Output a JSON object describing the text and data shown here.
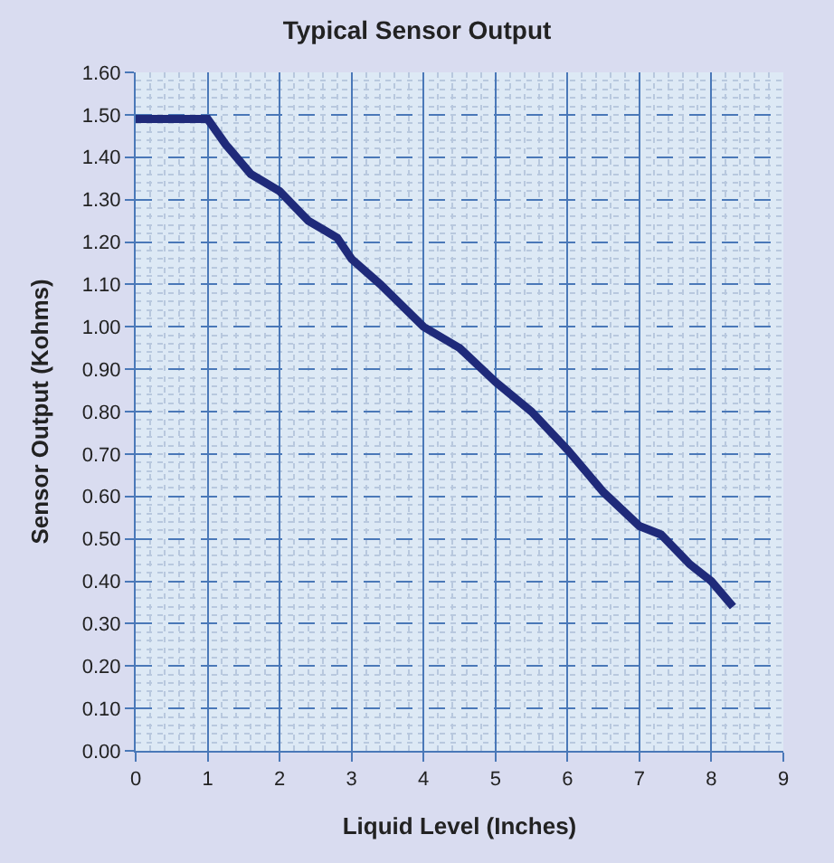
{
  "chart_data": {
    "type": "line",
    "title": "Typical Sensor Output",
    "xlabel": "Liquid Level (Inches)",
    "ylabel": "Sensor Output (Kohms)",
    "x": [
      0,
      1,
      1.25,
      1.6,
      2,
      2.4,
      2.8,
      3,
      3.4,
      4,
      4.5,
      5,
      5.5,
      6,
      6.5,
      7,
      7.3,
      7.7,
      8,
      8.3
    ],
    "series": [
      {
        "color": "#1f2a7a",
        "values": [
          1.49,
          1.49,
          1.43,
          1.36,
          1.32,
          1.25,
          1.21,
          1.16,
          1.1,
          1.0,
          0.95,
          0.87,
          0.8,
          0.71,
          0.61,
          0.53,
          0.51,
          0.44,
          0.4,
          0.34
        ]
      }
    ],
    "xlim": [
      0,
      9
    ],
    "xticks": [
      0,
      1,
      2,
      3,
      4,
      5,
      6,
      7,
      8,
      9
    ],
    "ylim": [
      0,
      1.6
    ],
    "yticks": [
      {
        "value": 0,
        "label": "0.00"
      },
      {
        "value": 0.1,
        "label": "0.10"
      },
      {
        "value": 0.2,
        "label": "0.20"
      },
      {
        "value": 0.3,
        "label": "0.30"
      },
      {
        "value": 0.4,
        "label": "0.40"
      },
      {
        "value": 0.5,
        "label": "0.50"
      },
      {
        "value": 0.6,
        "label": "0.60"
      },
      {
        "value": 0.7,
        "label": "0.70"
      },
      {
        "value": 0.8,
        "label": "0.80"
      },
      {
        "value": 0.9,
        "label": "0.90"
      },
      {
        "value": 1.0,
        "label": "1.00"
      },
      {
        "value": 1.1,
        "label": "1.10"
      },
      {
        "value": 1.2,
        "label": "1.20"
      },
      {
        "value": 1.3,
        "label": "1.30"
      },
      {
        "value": 1.4,
        "label": "1.40"
      },
      {
        "value": 1.5,
        "label": "1.50"
      },
      {
        "value": 1.6,
        "label": "1.60"
      }
    ],
    "grid": true,
    "legend": false,
    "marker": "none",
    "line_style": "solid"
  }
}
